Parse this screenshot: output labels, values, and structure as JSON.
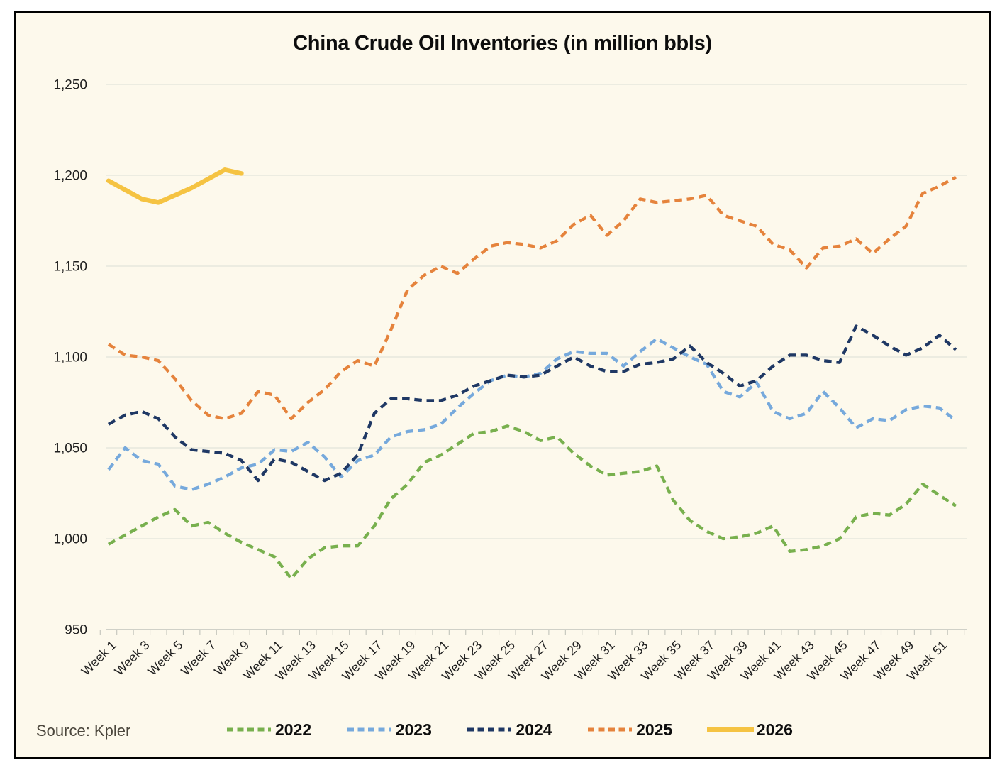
{
  "frame": {
    "title": "China Crude Oil Inventories (in million bbls)",
    "source": "Source: Kpler"
  },
  "chart_data": {
    "type": "line",
    "title": "China Crude Oil Inventories (in million bbls)",
    "xlabel": "",
    "ylabel": "",
    "ylim": [
      950,
      1250
    ],
    "y_tick_step": 50,
    "y_tick_labels": [
      "950",
      "1,000",
      "1,050",
      "1,100",
      "1,150",
      "1,200",
      "1,250"
    ],
    "x_tick_labels": [
      "Week 1",
      "Week 3",
      "Week 5",
      "Week 7",
      "Week 9",
      "Week 11",
      "Week 13",
      "Week 15",
      "Week 17",
      "Week 19",
      "Week 21",
      "Week 23",
      "Week 25",
      "Week 27",
      "Week 29",
      "Week 31",
      "Week 33",
      "Week 35",
      "Week 37",
      "Week 39",
      "Week 41",
      "Week 43",
      "Week 45",
      "Week 47",
      "Week 49",
      "Week 51"
    ],
    "weeks_total": 52,
    "grid": "horizontal",
    "legend_position": "bottom",
    "background_color": "#FDF9EC",
    "gridline_color": "#DCDED6",
    "axis_line_color": "#C2C4BB",
    "tick_label_color": "#1f1f1f",
    "series": [
      {
        "name": "2022",
        "color": "#78B04E",
        "style": "dashed",
        "values": [
          997,
          1002,
          1007,
          1012,
          1016,
          1007,
          1009,
          1003,
          998,
          994,
          990,
          978,
          989,
          995,
          996,
          996,
          1007,
          1022,
          1030,
          1042,
          1046,
          1052,
          1058,
          1059,
          1062,
          1059,
          1054,
          1056,
          1047,
          1040,
          1035,
          1036,
          1037,
          1040,
          1021,
          1010,
          1004,
          1000,
          1001,
          1003,
          1007,
          993,
          994,
          996,
          1000,
          1012,
          1014,
          1013,
          1019,
          1030,
          1024,
          1018
        ]
      },
      {
        "name": "2023",
        "color": "#76A9DC",
        "style": "dashed",
        "values": [
          1038,
          1050,
          1043,
          1041,
          1029,
          1027,
          1030,
          1034,
          1039,
          1041,
          1049,
          1048,
          1053,
          1045,
          1034,
          1043,
          1046,
          1056,
          1059,
          1060,
          1063,
          1072,
          1080,
          1087,
          1090,
          1089,
          1091,
          1099,
          1103,
          1102,
          1102,
          1095,
          1103,
          1110,
          1105,
          1100,
          1096,
          1081,
          1078,
          1086,
          1070,
          1066,
          1069,
          1081,
          1072,
          1061,
          1066,
          1065,
          1071,
          1073,
          1072,
          1065
        ]
      },
      {
        "name": "2024",
        "color": "#1F3864",
        "style": "dashed",
        "values": [
          1063,
          1068,
          1070,
          1066,
          1056,
          1049,
          1048,
          1047,
          1043,
          1032,
          1044,
          1042,
          1037,
          1032,
          1036,
          1046,
          1069,
          1077,
          1077,
          1076,
          1076,
          1079,
          1084,
          1087,
          1090,
          1089,
          1090,
          1095,
          1100,
          1095,
          1092,
          1092,
          1096,
          1097,
          1099,
          1106,
          1097,
          1091,
          1084,
          1087,
          1095,
          1101,
          1101,
          1098,
          1097,
          1117,
          1112,
          1106,
          1101,
          1105,
          1112,
          1104
        ]
      },
      {
        "name": "2025",
        "color": "#E5833C",
        "style": "dashed",
        "values": [
          1107,
          1101,
          1100,
          1098,
          1088,
          1076,
          1068,
          1066,
          1069,
          1081,
          1079,
          1066,
          1075,
          1082,
          1092,
          1098,
          1095,
          1115,
          1137,
          1145,
          1150,
          1146,
          1154,
          1161,
          1163,
          1162,
          1160,
          1164,
          1173,
          1178,
          1167,
          1175,
          1187,
          1185,
          1186,
          1187,
          1189,
          1178,
          1175,
          1172,
          1162,
          1159,
          1149,
          1160,
          1161,
          1165,
          1157,
          1165,
          1172,
          1190,
          1194,
          1199
        ]
      },
      {
        "name": "2026",
        "color": "#F5C342",
        "style": "solid",
        "values": [
          1197,
          1192,
          1187,
          1185,
          1189,
          1193,
          1198,
          1203,
          1201
        ]
      }
    ]
  }
}
